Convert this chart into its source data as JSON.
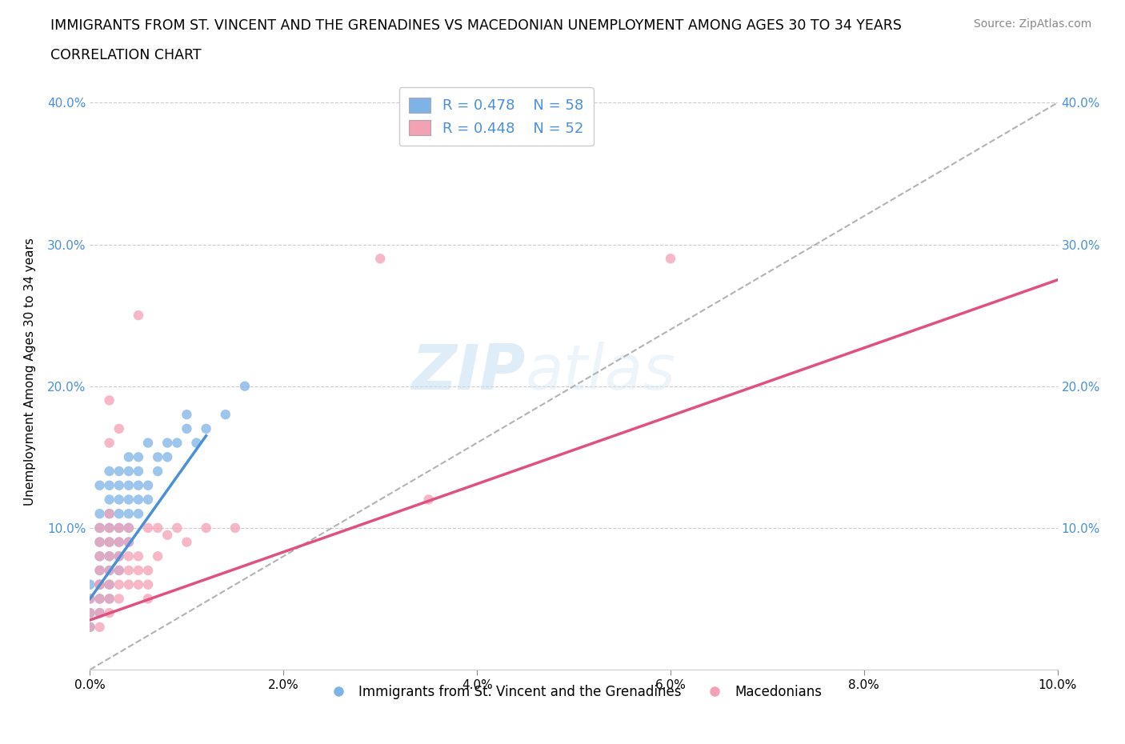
{
  "title_line1": "IMMIGRANTS FROM ST. VINCENT AND THE GRENADINES VS MACEDONIAN UNEMPLOYMENT AMONG AGES 30 TO 34 YEARS",
  "title_line2": "CORRELATION CHART",
  "source": "Source: ZipAtlas.com",
  "ylabel": "Unemployment Among Ages 30 to 34 years",
  "xlim": [
    0.0,
    0.1
  ],
  "ylim": [
    0.0,
    0.42
  ],
  "xticks": [
    0.0,
    0.02,
    0.04,
    0.06,
    0.08,
    0.1
  ],
  "yticks": [
    0.0,
    0.1,
    0.2,
    0.3,
    0.4
  ],
  "xtick_labels": [
    "0.0%",
    "2.0%",
    "4.0%",
    "6.0%",
    "8.0%",
    "10.0%"
  ],
  "ytick_labels": [
    "",
    "10.0%",
    "20.0%",
    "30.0%",
    "40.0%"
  ],
  "right_ytick_labels": [
    "",
    "10.0%",
    "20.0%",
    "30.0%",
    "40.0%"
  ],
  "R_blue": 0.478,
  "N_blue": 58,
  "R_pink": 0.448,
  "N_pink": 52,
  "blue_color": "#7eb3e8",
  "pink_color": "#f4a0b5",
  "trend_blue_color": "#4a90d9",
  "trend_pink_color": "#e05080",
  "trend_gray_dashed_color": "#aaaaaa",
  "watermark_zip": "ZIP",
  "watermark_atlas": "atlas",
  "legend_label_blue": "Immigrants from St. Vincent and the Grenadines",
  "legend_label_pink": "Macedonians",
  "blue_scatter": [
    [
      0.0,
      0.05
    ],
    [
      0.0,
      0.06
    ],
    [
      0.0,
      0.04
    ],
    [
      0.0,
      0.03
    ],
    [
      0.001,
      0.07
    ],
    [
      0.001,
      0.08
    ],
    [
      0.001,
      0.06
    ],
    [
      0.001,
      0.05
    ],
    [
      0.001,
      0.04
    ],
    [
      0.001,
      0.09
    ],
    [
      0.001,
      0.1
    ],
    [
      0.001,
      0.11
    ],
    [
      0.001,
      0.13
    ],
    [
      0.001,
      0.06
    ],
    [
      0.002,
      0.08
    ],
    [
      0.002,
      0.09
    ],
    [
      0.002,
      0.1
    ],
    [
      0.002,
      0.11
    ],
    [
      0.002,
      0.12
    ],
    [
      0.002,
      0.07
    ],
    [
      0.002,
      0.06
    ],
    [
      0.002,
      0.05
    ],
    [
      0.002,
      0.13
    ],
    [
      0.002,
      0.14
    ],
    [
      0.003,
      0.09
    ],
    [
      0.003,
      0.1
    ],
    [
      0.003,
      0.11
    ],
    [
      0.003,
      0.08
    ],
    [
      0.003,
      0.12
    ],
    [
      0.003,
      0.13
    ],
    [
      0.003,
      0.14
    ],
    [
      0.003,
      0.07
    ],
    [
      0.004,
      0.1
    ],
    [
      0.004,
      0.11
    ],
    [
      0.004,
      0.12
    ],
    [
      0.004,
      0.09
    ],
    [
      0.004,
      0.13
    ],
    [
      0.004,
      0.14
    ],
    [
      0.004,
      0.15
    ],
    [
      0.005,
      0.11
    ],
    [
      0.005,
      0.12
    ],
    [
      0.005,
      0.13
    ],
    [
      0.005,
      0.14
    ],
    [
      0.005,
      0.15
    ],
    [
      0.006,
      0.12
    ],
    [
      0.006,
      0.13
    ],
    [
      0.006,
      0.16
    ],
    [
      0.007,
      0.14
    ],
    [
      0.007,
      0.15
    ],
    [
      0.008,
      0.15
    ],
    [
      0.008,
      0.16
    ],
    [
      0.009,
      0.16
    ],
    [
      0.01,
      0.17
    ],
    [
      0.01,
      0.18
    ],
    [
      0.011,
      0.16
    ],
    [
      0.012,
      0.17
    ],
    [
      0.014,
      0.18
    ],
    [
      0.016,
      0.2
    ]
  ],
  "pink_scatter": [
    [
      0.0,
      0.04
    ],
    [
      0.0,
      0.03
    ],
    [
      0.0,
      0.05
    ],
    [
      0.001,
      0.05
    ],
    [
      0.001,
      0.06
    ],
    [
      0.001,
      0.04
    ],
    [
      0.001,
      0.03
    ],
    [
      0.001,
      0.07
    ],
    [
      0.001,
      0.08
    ],
    [
      0.001,
      0.09
    ],
    [
      0.001,
      0.1
    ],
    [
      0.001,
      0.06
    ],
    [
      0.002,
      0.05
    ],
    [
      0.002,
      0.06
    ],
    [
      0.002,
      0.07
    ],
    [
      0.002,
      0.08
    ],
    [
      0.002,
      0.09
    ],
    [
      0.002,
      0.1
    ],
    [
      0.002,
      0.11
    ],
    [
      0.002,
      0.04
    ],
    [
      0.002,
      0.16
    ],
    [
      0.002,
      0.19
    ],
    [
      0.003,
      0.06
    ],
    [
      0.003,
      0.07
    ],
    [
      0.003,
      0.08
    ],
    [
      0.003,
      0.09
    ],
    [
      0.003,
      0.1
    ],
    [
      0.003,
      0.05
    ],
    [
      0.003,
      0.17
    ],
    [
      0.004,
      0.07
    ],
    [
      0.004,
      0.08
    ],
    [
      0.004,
      0.09
    ],
    [
      0.004,
      0.06
    ],
    [
      0.004,
      0.1
    ],
    [
      0.005,
      0.07
    ],
    [
      0.005,
      0.08
    ],
    [
      0.005,
      0.06
    ],
    [
      0.005,
      0.25
    ],
    [
      0.006,
      0.05
    ],
    [
      0.006,
      0.06
    ],
    [
      0.006,
      0.07
    ],
    [
      0.006,
      0.1
    ],
    [
      0.007,
      0.08
    ],
    [
      0.007,
      0.1
    ],
    [
      0.008,
      0.095
    ],
    [
      0.009,
      0.1
    ],
    [
      0.01,
      0.09
    ],
    [
      0.012,
      0.1
    ],
    [
      0.015,
      0.1
    ],
    [
      0.03,
      0.29
    ],
    [
      0.035,
      0.12
    ],
    [
      0.06,
      0.29
    ]
  ],
  "blue_trend_x": [
    0.0,
    0.012
  ],
  "blue_trend_y": [
    0.05,
    0.165
  ],
  "gray_dashed_trend_x": [
    0.0,
    0.1
  ],
  "gray_dashed_trend_y": [
    0.0,
    0.4
  ],
  "pink_trend_x": [
    0.0,
    0.1
  ],
  "pink_trend_y": [
    0.035,
    0.275
  ]
}
